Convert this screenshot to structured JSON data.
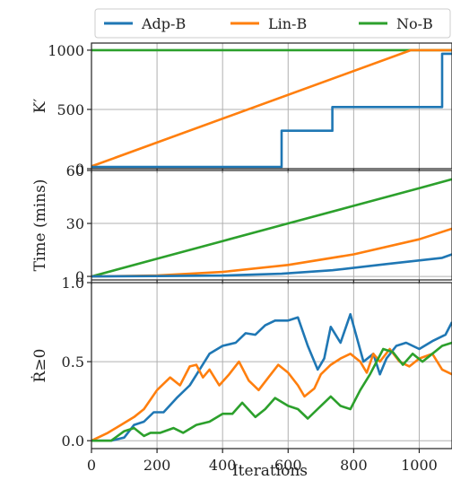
{
  "chart_data": {
    "type": "line",
    "legend": {
      "placement": "top",
      "entries": [
        {
          "name": "Adp-B",
          "color": "#1f77b4"
        },
        {
          "name": "Lin-B",
          "color": "#ff7f0e"
        },
        {
          "name": "No-B",
          "color": "#2ca02c"
        }
      ]
    },
    "shared_x": {
      "label": "Iterations",
      "ticks": [
        0,
        200,
        400,
        600,
        800,
        1000
      ],
      "tick_labels": [
        "0",
        "200",
        "400",
        "600",
        "800",
        "1000"
      ],
      "range": [
        0,
        1100
      ]
    },
    "grid": true,
    "panels": [
      {
        "ylabel": "K′",
        "ylim": [
          0,
          1060
        ],
        "yticks": [
          0,
          500,
          1000
        ],
        "ytick_labels": [
          "0",
          "500",
          "1000"
        ],
        "series": [
          {
            "name": "No-B",
            "step": false,
            "x": [
              0,
              1100
            ],
            "y": [
              1000,
              1000
            ]
          },
          {
            "name": "Lin-B",
            "step": false,
            "x": [
              0,
              975,
              1100
            ],
            "y": [
              20,
              1000,
              1000
            ]
          },
          {
            "name": "Adp-B",
            "step": true,
            "x": [
              0,
              580,
              580,
              735,
              735,
              1070,
              1070,
              1100
            ],
            "y": [
              15,
              15,
              320,
              320,
              520,
              520,
              970,
              970
            ]
          }
        ]
      },
      {
        "ylabel": "Time (mins)",
        "ylim": [
          -2,
          60
        ],
        "yticks": [
          0,
          30,
          60
        ],
        "ytick_labels": [
          "0",
          "30",
          "60"
        ],
        "series": [
          {
            "name": "No-B",
            "x": [
              0,
              200,
              400,
              600,
              800,
              1000,
              1100
            ],
            "y": [
              0,
              10,
              20,
              30,
              40,
              50,
              55
            ]
          },
          {
            "name": "Lin-B",
            "x": [
              0,
              200,
              400,
              600,
              800,
              1000,
              1100
            ],
            "y": [
              0,
              0.5,
              2.5,
              6.5,
              12.5,
              21,
              27
            ]
          },
          {
            "name": "Adp-B",
            "x": [
              0,
              200,
              400,
              580,
              735,
              900,
              1070,
              1100
            ],
            "y": [
              0,
              0.2,
              0.5,
              1.5,
              3.5,
              7,
              10.5,
              12.5
            ]
          }
        ]
      },
      {
        "ylabel": "Ṙ≥0",
        "ylim": [
          -0.05,
          1.0
        ],
        "yticks": [
          0.0,
          0.5,
          1.0
        ],
        "ytick_labels": [
          "0.0",
          "0.5",
          "1.0"
        ],
        "series": [
          {
            "name": "Adp-B",
            "x": [
              0,
              60,
              100,
              130,
              160,
              190,
              220,
              260,
              300,
              330,
              360,
              400,
              440,
              470,
              500,
              530,
              560,
              600,
              630,
              660,
              690,
              710,
              730,
              760,
              790,
              810,
              830,
              860,
              880,
              900,
              930,
              960,
              1000,
              1040,
              1080,
              1100
            ],
            "y": [
              0.0,
              0.0,
              0.02,
              0.1,
              0.12,
              0.18,
              0.18,
              0.27,
              0.35,
              0.45,
              0.55,
              0.6,
              0.62,
              0.68,
              0.67,
              0.73,
              0.76,
              0.76,
              0.78,
              0.6,
              0.45,
              0.52,
              0.72,
              0.62,
              0.8,
              0.65,
              0.5,
              0.55,
              0.42,
              0.52,
              0.6,
              0.62,
              0.58,
              0.63,
              0.67,
              0.75
            ]
          },
          {
            "name": "Lin-B",
            "x": [
              0,
              50,
              90,
              130,
              160,
              200,
              240,
              270,
              300,
              320,
              340,
              360,
              390,
              420,
              450,
              480,
              510,
              540,
              570,
              600,
              630,
              650,
              680,
              700,
              730,
              760,
              790,
              820,
              840,
              860,
              880,
              910,
              940,
              970,
              1000,
              1040,
              1070,
              1100
            ],
            "y": [
              0.0,
              0.05,
              0.1,
              0.15,
              0.2,
              0.32,
              0.4,
              0.35,
              0.47,
              0.48,
              0.4,
              0.45,
              0.35,
              0.42,
              0.5,
              0.38,
              0.32,
              0.4,
              0.48,
              0.43,
              0.35,
              0.28,
              0.33,
              0.42,
              0.48,
              0.52,
              0.55,
              0.5,
              0.43,
              0.55,
              0.5,
              0.58,
              0.5,
              0.47,
              0.52,
              0.55,
              0.45,
              0.42
            ]
          },
          {
            "name": "No-B",
            "x": [
              0,
              60,
              100,
              130,
              160,
              180,
              210,
              250,
              280,
              320,
              360,
              400,
              430,
              460,
              500,
              530,
              560,
              600,
              630,
              660,
              700,
              730,
              760,
              790,
              820,
              850,
              870,
              890,
              920,
              950,
              980,
              1010,
              1040,
              1070,
              1100
            ],
            "y": [
              0.0,
              0.0,
              0.06,
              0.08,
              0.03,
              0.05,
              0.05,
              0.08,
              0.05,
              0.1,
              0.12,
              0.17,
              0.17,
              0.24,
              0.15,
              0.2,
              0.27,
              0.22,
              0.2,
              0.14,
              0.22,
              0.28,
              0.22,
              0.2,
              0.32,
              0.42,
              0.5,
              0.58,
              0.56,
              0.48,
              0.55,
              0.5,
              0.55,
              0.6,
              0.62
            ]
          }
        ]
      }
    ]
  }
}
